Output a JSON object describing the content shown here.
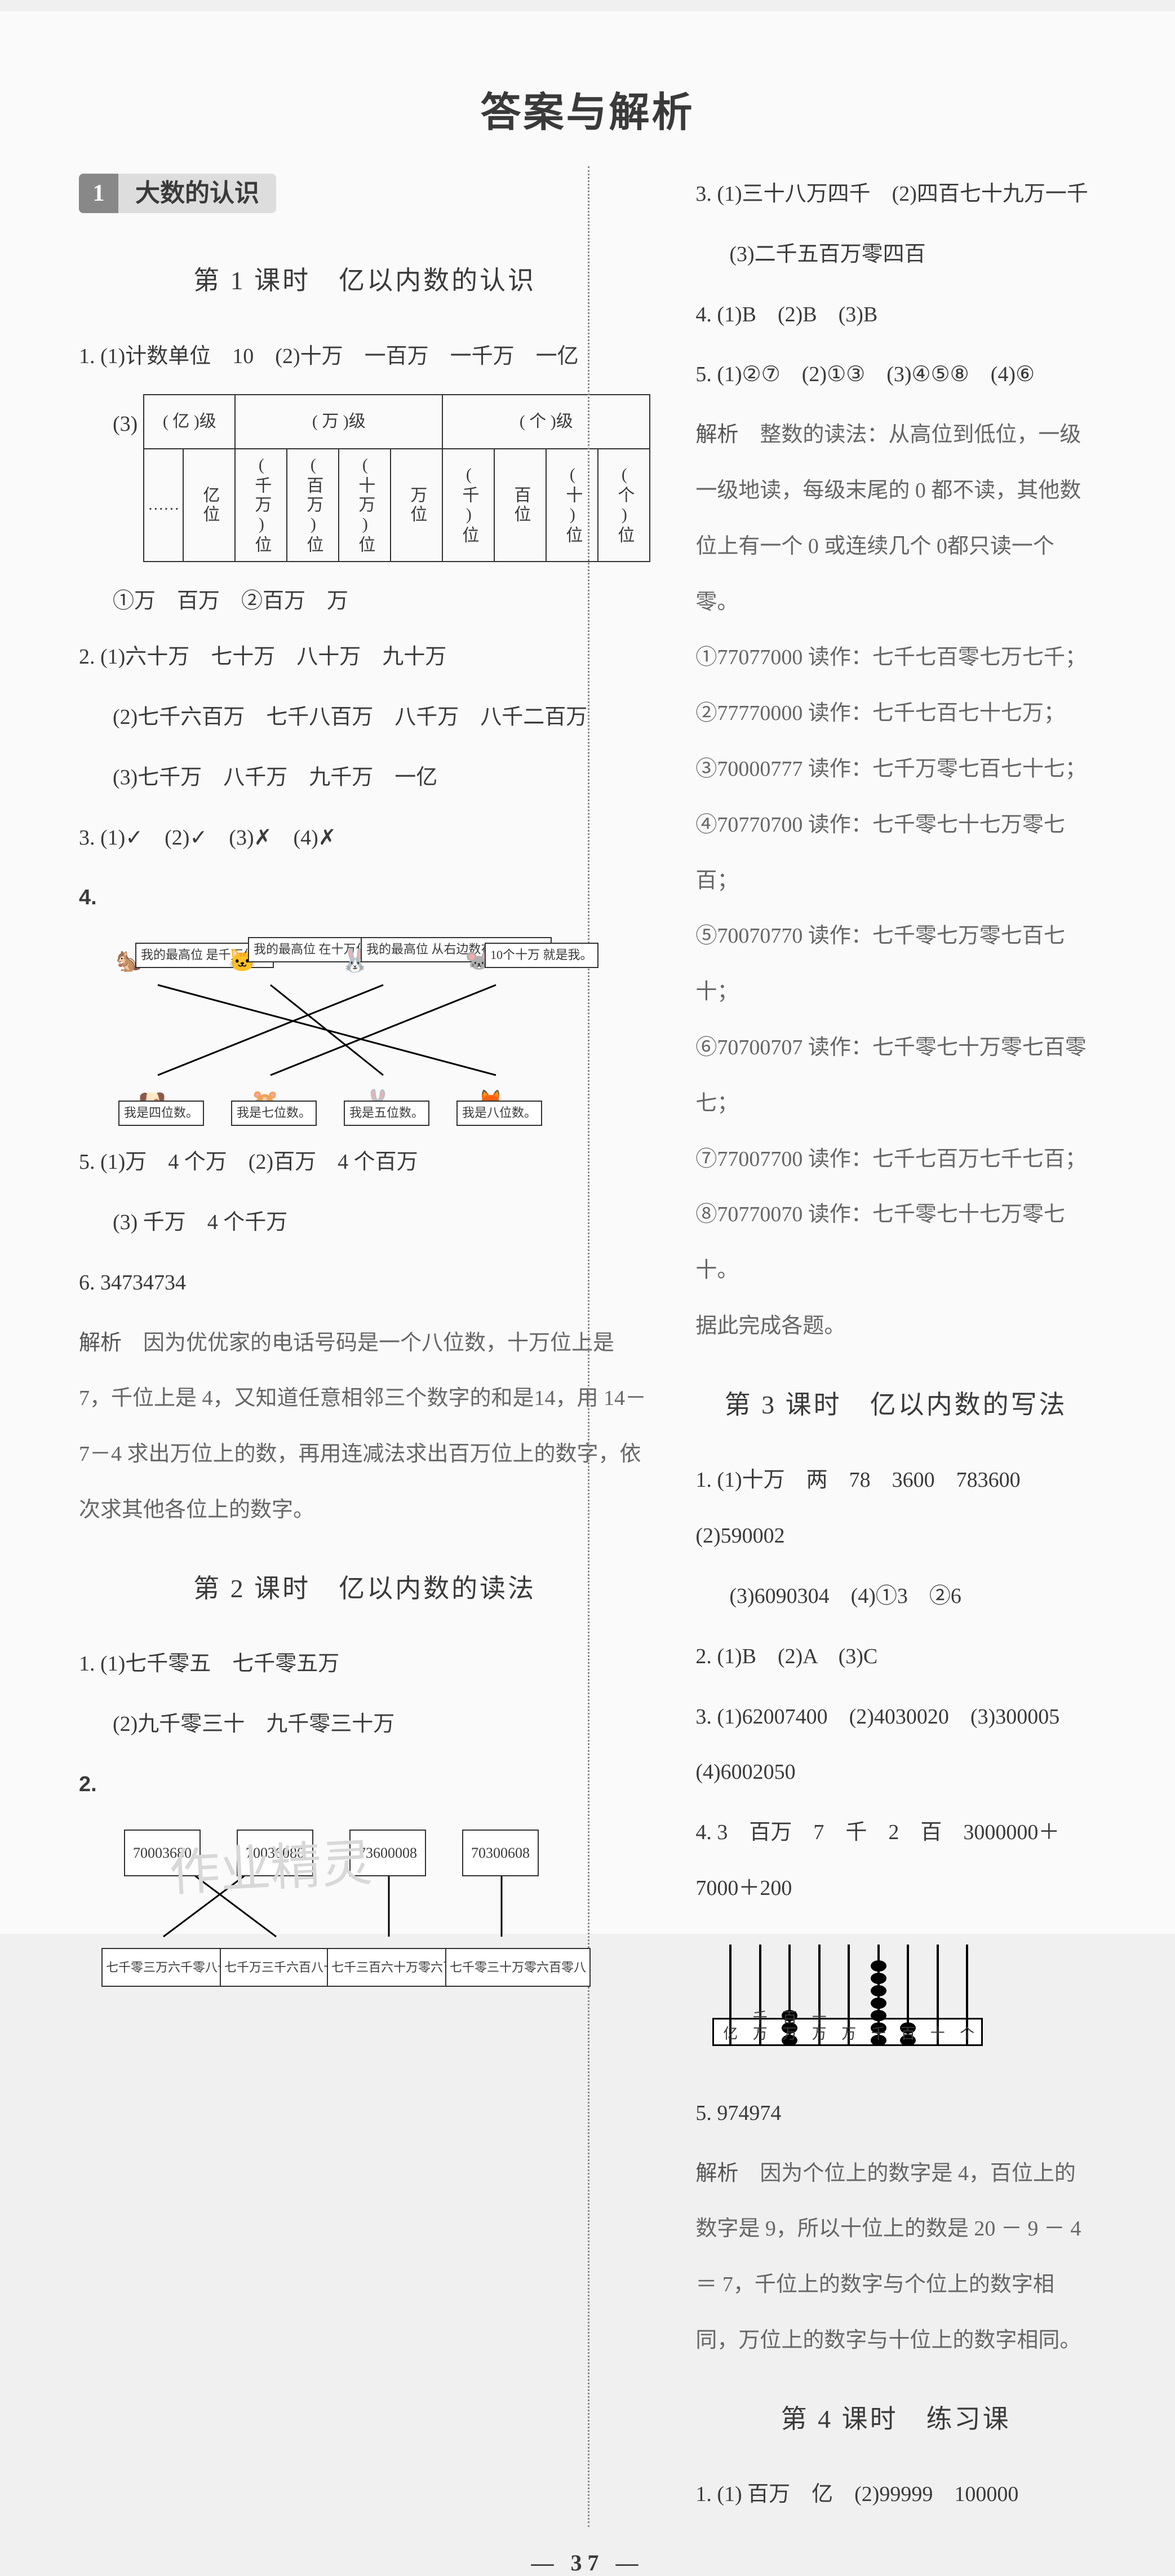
{
  "main_title": "答案与解析",
  "page_number": "— 37 —",
  "watermark": "作业精灵",
  "unit": {
    "num": "1",
    "title": "大数的认识"
  },
  "lesson1": {
    "title": "第 1 课时　亿以内数的认识",
    "q1_a": "1. (1)计数单位　10　(2)十万　一百万　一千万　一亿",
    "q1_c_prefix": "(3)",
    "table": {
      "heads": [
        "( 亿 )级",
        "( 万 )级",
        "( 个 )级"
      ],
      "cells": [
        "……",
        "亿位",
        "(千万)位",
        "(百万)位",
        "(十万)位",
        "万位",
        "(千)位",
        "百位",
        "(十)位",
        "(个)位"
      ]
    },
    "q1_foot": "①万　百万　②百万　万",
    "q2_1": "2. (1)六十万　七十万　八十万　九十万",
    "q2_2": "(2)七千六百万　七千八百万　八千万　八千二百万",
    "q2_3": "(3)七千万　八千万　九千万　一亿",
    "q3": "3. (1)✓　(2)✓　(3)✗　(4)✗",
    "q4_label": "4.",
    "q4_top": [
      "我的最高位\n是千万位。",
      "我的最高位\n在十万位和\n千位中间。",
      "我的最高位\n从右边数在\n第四位。",
      "10个十万\n就是我。"
    ],
    "q4_bot": [
      "我是四位数。",
      "我是七位数。",
      "我是五位数。",
      "我是八位数。"
    ],
    "q5_1": "5. (1)万　4 个万　(2)百万　4 个百万",
    "q5_2": "(3) 千万　4 个千万",
    "q6": "6. 34734734",
    "q6_hint_label": "解析",
    "q6_hint": "　因为优优家的电话号码是一个八位数，十万位上是 7，千位上是 4，又知道任意相邻三个数字的和是14，用 14－7－4 求出万位上的数，再用连减法求出百万位上的数字，依次求其他各位上的数字。"
  },
  "lesson2": {
    "title": "第 2 课时　亿以内数的读法",
    "q1_1": "1. (1)七千零五　七千零五万",
    "q1_2": "(2)九千零三十　九千零三十万",
    "q2_label": "2.",
    "q2_top": [
      "70003680",
      "70036080",
      "73600008",
      "70300608"
    ],
    "q2_bot": [
      "七千零三万六千零八十",
      "七千万三千六百八十",
      "七千三百六十万零六百八",
      "七千零三十万零六百零八"
    ],
    "q3_1": "3. (1)三十八万四千　(2)四百七十九万一千",
    "q3_2": "(3)二千五百万零四百",
    "q4": "4. (1)B　(2)B　(3)B",
    "q5": "5. (1)②⑦　(2)①③　(3)④⑤⑧　(4)⑥",
    "q5_hint_label": "解析",
    "q5_hint_a": "　整数的读法：从高位到低位，一级一级地读，每级末尾的 0 都不读，其他数位上有一个 0 或连续几个 0都只读一个零。",
    "q5_lines": [
      "①77077000 读作：七千七百零七万七千；",
      "②77770000 读作：七千七百七十七万；",
      "③70000777 读作：七千万零七百七十七；",
      "④70770700 读作：七千零七十七万零七百；",
      "⑤70070770 读作：七千零七万零七百七十；",
      "⑥70700707 读作：七千零七十万零七百零七；",
      "⑦77007700 读作：七千七百万七千七百；",
      "⑧70770070 读作：七千零七十七万零七十。"
    ],
    "q5_tail": "据此完成各题。"
  },
  "lesson3": {
    "title": "第 3 课时　亿以内数的写法",
    "q1_1": "1. (1)十万　两　78　3600　783600　(2)590002",
    "q1_2": "(3)6090304　(4)①3　②6",
    "q2": "2. (1)B　(2)A　(3)C",
    "q3": "3. (1)62007400　(2)4030020　(3)300005　(4)6002050",
    "q4": "4. 3　百万　7　千　2　百　3000000＋7000＋200",
    "abacus_labels": [
      "亿",
      "千万",
      "百万",
      "十万",
      "万",
      "千",
      "百",
      "十",
      "个"
    ],
    "abacus_beads": [
      0,
      0,
      3,
      0,
      0,
      7,
      2,
      0,
      0
    ],
    "q5": "5. 974974",
    "q5_hint_label": "解析",
    "q5_hint": "　因为个位上的数字是 4，百位上的数字是 9，所以十位上的数是 20 － 9 － 4 ＝ 7，千位上的数字与个位上的数字相同，万位上的数字与十位上的数字相同。"
  },
  "lesson4": {
    "title": "第 4 课时　练习课",
    "q1": "1. (1) 百万　亿　(2)99999　100000"
  }
}
